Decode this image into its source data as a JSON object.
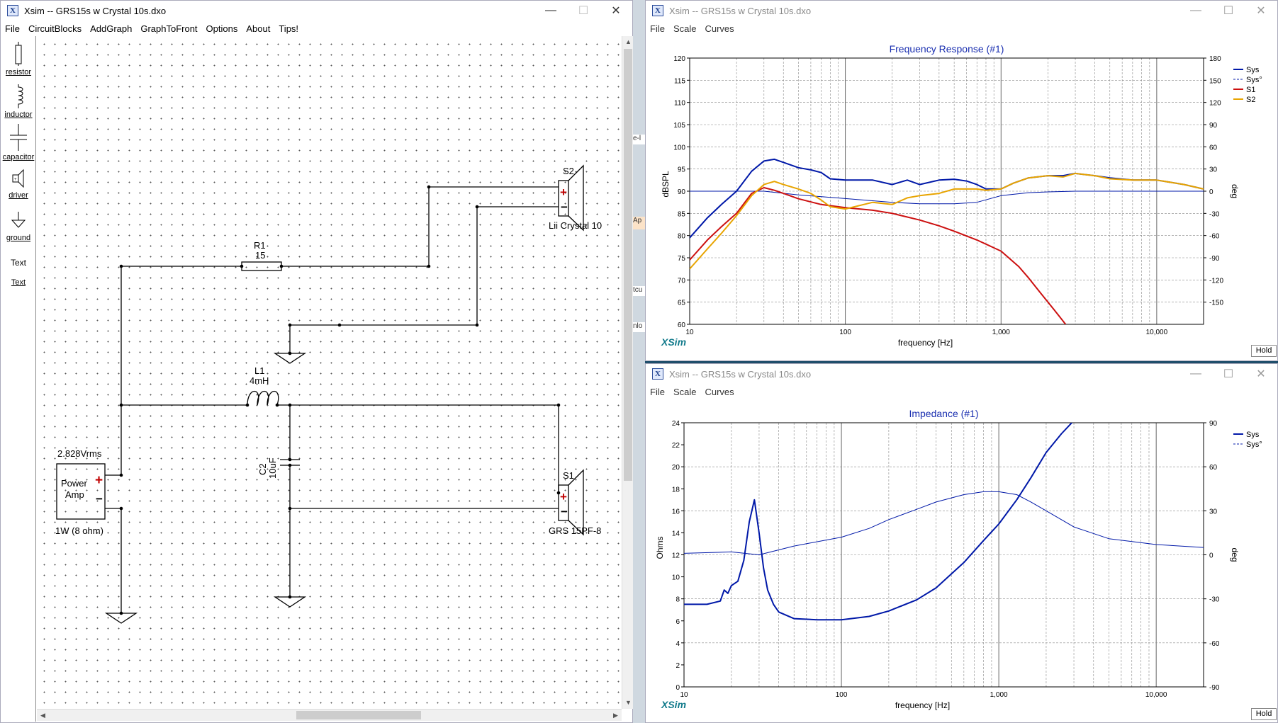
{
  "main_window": {
    "title": "Xsim -- GRS15s w Crystal 10s.dxo",
    "controls": {
      "minimize": "—",
      "maximize": "☐",
      "close": "✕"
    },
    "menu": [
      "File",
      "CircuitBlocks",
      "AddGraph",
      "GraphToFront",
      "Options",
      "About",
      "Tips!"
    ]
  },
  "toolbox": [
    {
      "label": "resistor",
      "icon": "resistor-icon"
    },
    {
      "label": "inductor",
      "icon": "inductor-icon"
    },
    {
      "label": "capacitor",
      "icon": "capacitor-icon"
    },
    {
      "label": "driver",
      "icon": "driver-icon"
    },
    {
      "label": "ground",
      "icon": "ground-icon"
    },
    {
      "label": "Text",
      "icon": "text-icon"
    },
    {
      "label": "Text",
      "icon": "text-link"
    }
  ],
  "circuit": {
    "source": {
      "voltage": "2.828Vrms",
      "line1": "Power",
      "line2": "Amp",
      "rating": "1W (8 ohm)",
      "plus": "+",
      "minus": "−"
    },
    "r1": {
      "name": "R1",
      "value": "15"
    },
    "l1": {
      "name": "L1",
      "value": "4mH"
    },
    "c2": {
      "name": "C2",
      "value": "10uF"
    },
    "s2": {
      "name": "S2",
      "model": "Lii Crystal 10"
    },
    "s1": {
      "name": "S1",
      "model": "GRS 15PF-8"
    }
  },
  "side_strip": [
    "e-l",
    "Ap",
    "tcu",
    "nlo"
  ],
  "freq_window": {
    "title": "Xsim -- GRS15s w Crystal 10s.dxo",
    "menu": [
      "File",
      "Scale",
      "Curves"
    ],
    "hold": "Hold",
    "brand": "XSim"
  },
  "imp_window": {
    "title": "Xsim -- GRS15s w Crystal 10s.dxo",
    "menu": [
      "File",
      "Scale",
      "Curves"
    ],
    "hold": "Hold",
    "brand": "XSim"
  },
  "chart_data": [
    {
      "type": "line",
      "title": "Frequency Response (#1)",
      "xlabel": "frequency [Hz]",
      "ylabel": "dBSPL",
      "y2label": "deg",
      "xscale": "log",
      "xlim": [
        10,
        20000
      ],
      "xticks": [
        "10",
        "100",
        "1,000",
        "10,000"
      ],
      "ylim": [
        60,
        120
      ],
      "yticks": [
        60,
        65,
        70,
        75,
        80,
        85,
        90,
        95,
        100,
        105,
        110,
        115,
        120
      ],
      "y2lim": [
        -180,
        180
      ],
      "y2ticks": [
        -150,
        -120,
        -90,
        -60,
        -30,
        0,
        30,
        60,
        90,
        120,
        150,
        180
      ],
      "legend": "right",
      "series": [
        {
          "name": "Sys",
          "color": "#0018a8",
          "axis": "y",
          "x": [
            10,
            13,
            16,
            20,
            25,
            30,
            35,
            40,
            50,
            60,
            70,
            80,
            100,
            150,
            200,
            250,
            300,
            400,
            500,
            600,
            700,
            800,
            1000,
            1200,
            1500,
            2000,
            2500,
            3000,
            4000,
            5000,
            7000,
            10000,
            15000,
            20000
          ],
          "y": [
            79.5,
            84,
            87,
            90,
            94.5,
            96.8,
            97.2,
            96.5,
            95.3,
            94.8,
            94.2,
            92.8,
            92.5,
            92.5,
            91.5,
            92.5,
            91.5,
            92.5,
            92.7,
            92.3,
            91.5,
            90.5,
            90.5,
            91.8,
            93,
            93.5,
            93.5,
            94,
            93.5,
            93,
            92.5,
            92.5,
            91.5,
            90.5
          ]
        },
        {
          "name": "Sys°",
          "color": "#0018a8",
          "axis": "y2",
          "x": [
            10,
            20,
            30,
            50,
            100,
            200,
            300,
            500,
            700,
            1000,
            1500,
            2000,
            3000,
            5000,
            10000,
            20000
          ],
          "y": [
            0,
            0,
            0,
            -5,
            -10,
            -15,
            -17,
            -17,
            -15,
            -6,
            -2,
            -1,
            0,
            0,
            0,
            0
          ]
        },
        {
          "name": "S1",
          "color": "#cc1010",
          "axis": "y",
          "x": [
            10,
            13,
            16,
            20,
            25,
            30,
            35,
            40,
            50,
            70,
            100,
            150,
            200,
            300,
            400,
            500,
            700,
            1000,
            1300,
            1500,
            1800,
            2200,
            2600
          ],
          "y": [
            74.5,
            79,
            82,
            85,
            89.5,
            90.8,
            90.2,
            89.5,
            88.3,
            87,
            86.3,
            85.7,
            85,
            83.5,
            82.2,
            81,
            79,
            76.5,
            73,
            70.5,
            67,
            63.2,
            60
          ]
        },
        {
          "name": "S2",
          "color": "#e8a400",
          "axis": "y",
          "x": [
            10,
            13,
            16,
            20,
            25,
            30,
            35,
            40,
            50,
            60,
            70,
            80,
            100,
            150,
            200,
            250,
            300,
            400,
            500,
            600,
            700,
            800,
            1000,
            1200,
            1500,
            2000,
            2500,
            3000,
            4000,
            5000,
            7000,
            10000,
            15000,
            20000
          ],
          "y": [
            72.5,
            77,
            80.5,
            84.5,
            89,
            91.5,
            92.2,
            91.5,
            90.5,
            89.5,
            88,
            86.5,
            86,
            87.5,
            87,
            88.5,
            89,
            89.5,
            90.5,
            90.5,
            90.5,
            90.2,
            90.5,
            91.8,
            93,
            93.5,
            93.2,
            94,
            93.5,
            92.8,
            92.5,
            92.5,
            91.5,
            90.5
          ]
        }
      ]
    },
    {
      "type": "line",
      "title": "Impedance (#1)",
      "xlabel": "frequency [Hz]",
      "ylabel": "Ohms",
      "y2label": "deg",
      "xscale": "log",
      "xlim": [
        10,
        20000
      ],
      "xticks": [
        "10",
        "100",
        "1,000",
        "10,000"
      ],
      "ylim": [
        0,
        24
      ],
      "yticks": [
        0,
        2,
        4,
        6,
        8,
        10,
        12,
        14,
        16,
        18,
        20,
        22,
        24
      ],
      "y2lim": [
        -90,
        90
      ],
      "y2ticks": [
        -90,
        -60,
        -30,
        0,
        30,
        60,
        90
      ],
      "legend": "right",
      "series": [
        {
          "name": "Sys",
          "color": "#0018a8",
          "axis": "y",
          "x": [
            10,
            14,
            17,
            18,
            19,
            20,
            22,
            24,
            26,
            28,
            30,
            32,
            34,
            37,
            40,
            50,
            70,
            100,
            150,
            200,
            300,
            400,
            600,
            800,
            1000,
            1300,
            1600,
            2000,
            2500,
            3000,
            3400
          ],
          "y": [
            7.5,
            7.5,
            7.8,
            8.8,
            8.5,
            9.2,
            9.6,
            11.5,
            15,
            17,
            14,
            10.8,
            8.8,
            7.5,
            6.8,
            6.2,
            6.1,
            6.1,
            6.4,
            6.9,
            7.9,
            9,
            11.3,
            13.3,
            14.8,
            17,
            19,
            21.3,
            23,
            24.2,
            24.8
          ]
        },
        {
          "name": "Sys°",
          "color": "#0018a8",
          "axis": "y2",
          "x": [
            10,
            20,
            30,
            50,
            100,
            150,
            200,
            300,
            400,
            600,
            800,
            1000,
            1300,
            1600,
            2000,
            3000,
            5000,
            10000,
            20000
          ],
          "y": [
            1,
            2,
            0,
            6,
            12,
            18,
            24,
            31,
            36,
            41,
            43,
            43,
            41,
            36,
            30,
            19,
            11,
            7,
            5
          ]
        }
      ]
    }
  ]
}
